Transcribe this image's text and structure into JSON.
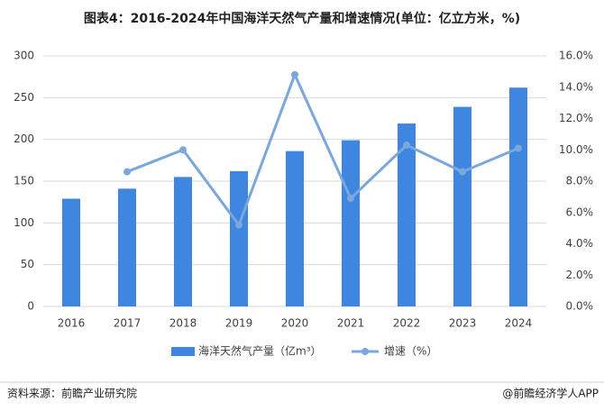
{
  "chart_data": {
    "type": "bar_line",
    "title": "图表4：2016-2024年中国海洋天然气产量和增速情况(单位：亿立方米，%)",
    "categories": [
      "2016",
      "2017",
      "2018",
      "2019",
      "2020",
      "2021",
      "2022",
      "2023",
      "2024"
    ],
    "series": [
      {
        "name": "海洋天然气产量（亿m³）",
        "color": "#3f86e0",
        "type": "bar",
        "values": [
          129,
          141,
          155,
          162,
          186,
          199,
          219,
          239,
          262
        ]
      },
      {
        "name": "增速（%）",
        "color": "#7aa7dc",
        "type": "line",
        "axis": "y2",
        "values": [
          null,
          8.6,
          10.0,
          5.2,
          14.8,
          6.9,
          10.3,
          8.6,
          10.1
        ]
      }
    ],
    "ylim": [
      0,
      300
    ],
    "yticks": [
      0,
      50,
      100,
      150,
      200,
      250,
      300
    ],
    "y2lim": [
      0,
      16
    ],
    "y2ticks": [
      {
        "value": 0,
        "label": "0.0%"
      },
      {
        "value": 2,
        "label": "2.0%"
      },
      {
        "value": 4,
        "label": "4.0%"
      },
      {
        "value": 6,
        "label": "6.0%"
      },
      {
        "value": 8,
        "label": "8.0%"
      },
      {
        "value": 10,
        "label": "10.0%"
      },
      {
        "value": 12,
        "label": "12.0%"
      },
      {
        "value": 14,
        "label": "14.0%"
      },
      {
        "value": 16,
        "label": "16.0%"
      }
    ],
    "grid": true
  },
  "footer": {
    "source": "资料来源：前瞻产业研究院",
    "credit": "@前瞻经济学人APP"
  }
}
